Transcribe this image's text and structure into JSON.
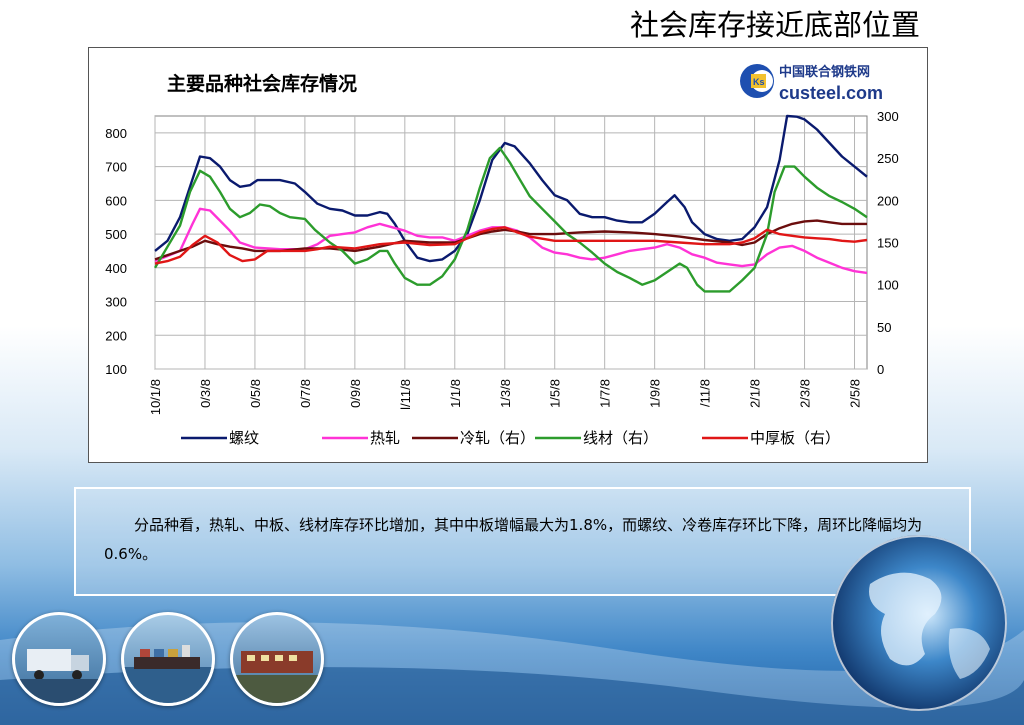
{
  "slide": {
    "title": "社会库存接近底部位置",
    "body_text": "分品种看，热轧、中板、线材库存环比增加，其中中板增幅最大为1.8%，而螺纹、冷卷库存环比下降，周环比降幅均为0.6%。"
  },
  "logo": {
    "cn_text": "中国联合钢铁网",
    "en_text": "custeel.com",
    "mark_text": "Ks"
  },
  "colors": {
    "rebar": "#0a1a6e",
    "hot_rolled": "#ff33d6",
    "cold_rolled": "#6b0d0d",
    "wire_rod": "#2c9c2c",
    "plate": "#e01616",
    "slide_bg_blue": "#1d5fa3"
  },
  "chart_data": {
    "type": "line",
    "title": "主要品种社会库存情况",
    "x_tick_labels": [
      "10/1/8",
      "0/3/8",
      "0/5/8",
      "0/7/8",
      "0/9/8",
      "l/11/8",
      "1/1/8",
      "1/3/8",
      "1/5/8",
      "1/7/8",
      "1/9/8",
      "/11/8",
      "2/1/8",
      "2/3/8",
      "2/5/8"
    ],
    "x_positions": [
      0,
      2,
      4,
      6,
      8,
      10,
      12,
      14,
      16,
      18,
      20,
      22,
      24,
      26,
      28
    ],
    "x_range": [
      0,
      28.5
    ],
    "y_left": {
      "range": [
        100,
        850
      ],
      "ticks": [
        100,
        200,
        300,
        400,
        500,
        600,
        700,
        800
      ]
    },
    "y_right": {
      "range": [
        0,
        300
      ],
      "ticks": [
        0,
        50,
        100,
        150,
        200,
        250,
        300
      ]
    },
    "grid": true,
    "legend_position": "bottom",
    "series": [
      {
        "name": "螺纹",
        "axis": "left",
        "color_key": "rebar",
        "points": [
          [
            0,
            450
          ],
          [
            0.5,
            480
          ],
          [
            1,
            550
          ],
          [
            1.4,
            640
          ],
          [
            1.8,
            730
          ],
          [
            2.2,
            725
          ],
          [
            2.6,
            700
          ],
          [
            3,
            660
          ],
          [
            3.4,
            640
          ],
          [
            3.8,
            645
          ],
          [
            4.1,
            660
          ],
          [
            5,
            660
          ],
          [
            5.6,
            650
          ],
          [
            6,
            625
          ],
          [
            6.5,
            590
          ],
          [
            7,
            575
          ],
          [
            7.5,
            570
          ],
          [
            8,
            555
          ],
          [
            8.5,
            555
          ],
          [
            9,
            565
          ],
          [
            9.3,
            560
          ],
          [
            9.6,
            530
          ],
          [
            10,
            480
          ],
          [
            10.5,
            430
          ],
          [
            11,
            420
          ],
          [
            11.5,
            425
          ],
          [
            12,
            450
          ],
          [
            12.5,
            500
          ],
          [
            13,
            600
          ],
          [
            13.5,
            720
          ],
          [
            14,
            770
          ],
          [
            14.4,
            760
          ],
          [
            15,
            710
          ],
          [
            15.5,
            660
          ],
          [
            16,
            615
          ],
          [
            16.5,
            600
          ],
          [
            17,
            560
          ],
          [
            17.5,
            550
          ],
          [
            18,
            550
          ],
          [
            18.5,
            540
          ],
          [
            19,
            535
          ],
          [
            19.5,
            535
          ],
          [
            20,
            560
          ],
          [
            20.5,
            595
          ],
          [
            20.8,
            615
          ],
          [
            21.2,
            580
          ],
          [
            21.5,
            535
          ],
          [
            22,
            500
          ],
          [
            22.5,
            485
          ],
          [
            23,
            480
          ],
          [
            23.5,
            485
          ],
          [
            24,
            520
          ],
          [
            24.5,
            580
          ],
          [
            25,
            720
          ],
          [
            25.3,
            850
          ],
          [
            25.7,
            848
          ],
          [
            26,
            840
          ],
          [
            26.5,
            810
          ],
          [
            27,
            770
          ],
          [
            27.5,
            730
          ],
          [
            28,
            700
          ],
          [
            28.5,
            670
          ]
        ]
      },
      {
        "name": "热轧",
        "axis": "left",
        "color_key": "hot_rolled",
        "points": [
          [
            0,
            420
          ],
          [
            0.5,
            435
          ],
          [
            1,
            450
          ],
          [
            1.5,
            530
          ],
          [
            1.8,
            575
          ],
          [
            2.2,
            570
          ],
          [
            2.6,
            540
          ],
          [
            3,
            510
          ],
          [
            3.4,
            475
          ],
          [
            4,
            460
          ],
          [
            5,
            455
          ],
          [
            6,
            455
          ],
          [
            6.5,
            470
          ],
          [
            7,
            495
          ],
          [
            7.5,
            500
          ],
          [
            8,
            505
          ],
          [
            8.5,
            520
          ],
          [
            9,
            530
          ],
          [
            9.5,
            520
          ],
          [
            10,
            510
          ],
          [
            10.5,
            495
          ],
          [
            11,
            490
          ],
          [
            11.5,
            490
          ],
          [
            12,
            480
          ],
          [
            12.5,
            495
          ],
          [
            13,
            510
          ],
          [
            13.5,
            520
          ],
          [
            14,
            520
          ],
          [
            14.5,
            510
          ],
          [
            15,
            490
          ],
          [
            15.5,
            460
          ],
          [
            16,
            445
          ],
          [
            16.5,
            440
          ],
          [
            17,
            430
          ],
          [
            17.5,
            425
          ],
          [
            18,
            430
          ],
          [
            18.5,
            440
          ],
          [
            19,
            450
          ],
          [
            19.5,
            455
          ],
          [
            20,
            460
          ],
          [
            20.5,
            470
          ],
          [
            21,
            460
          ],
          [
            21.5,
            440
          ],
          [
            22,
            430
          ],
          [
            22.5,
            415
          ],
          [
            23,
            410
          ],
          [
            23.5,
            405
          ],
          [
            24,
            410
          ],
          [
            24.5,
            440
          ],
          [
            25,
            460
          ],
          [
            25.5,
            465
          ],
          [
            26,
            450
          ],
          [
            26.5,
            430
          ],
          [
            27,
            415
          ],
          [
            27.5,
            400
          ],
          [
            28,
            390
          ],
          [
            28.5,
            385
          ]
        ]
      },
      {
        "name": "冷轧（右）",
        "axis": "right",
        "color_key": "cold_rolled",
        "points": [
          [
            0,
            130
          ],
          [
            0.5,
            135
          ],
          [
            1,
            140
          ],
          [
            1.5,
            145
          ],
          [
            2,
            152
          ],
          [
            2.5,
            148
          ],
          [
            3,
            145
          ],
          [
            3.5,
            143
          ],
          [
            4,
            140
          ],
          [
            5,
            140
          ],
          [
            6,
            143
          ],
          [
            7,
            143
          ],
          [
            8,
            140
          ],
          [
            9,
            145
          ],
          [
            10,
            152
          ],
          [
            11,
            150
          ],
          [
            12,
            150
          ],
          [
            12.5,
            155
          ],
          [
            13,
            160
          ],
          [
            13.5,
            163
          ],
          [
            14,
            165
          ],
          [
            14.5,
            163
          ],
          [
            15,
            160
          ],
          [
            16,
            160
          ],
          [
            17,
            162
          ],
          [
            18,
            163
          ],
          [
            19,
            162
          ],
          [
            20,
            160
          ],
          [
            21,
            157
          ],
          [
            22,
            153
          ],
          [
            23,
            150
          ],
          [
            23.5,
            147
          ],
          [
            24,
            150
          ],
          [
            24.5,
            160
          ],
          [
            25,
            167
          ],
          [
            25.5,
            172
          ],
          [
            26,
            175
          ],
          [
            26.5,
            176
          ],
          [
            27,
            174
          ],
          [
            27.5,
            172
          ],
          [
            28,
            172
          ],
          [
            28.5,
            172
          ]
        ]
      },
      {
        "name": "线材（右）",
        "axis": "right",
        "color_key": "wire_rod",
        "points": [
          [
            0,
            120
          ],
          [
            0.5,
            145
          ],
          [
            1,
            170
          ],
          [
            1.4,
            210
          ],
          [
            1.8,
            235
          ],
          [
            2.2,
            228
          ],
          [
            2.6,
            210
          ],
          [
            3,
            190
          ],
          [
            3.4,
            180
          ],
          [
            3.8,
            185
          ],
          [
            4.2,
            195
          ],
          [
            4.6,
            193
          ],
          [
            5,
            185
          ],
          [
            5.4,
            180
          ],
          [
            6,
            178
          ],
          [
            6.4,
            165
          ],
          [
            7,
            150
          ],
          [
            7.5,
            140
          ],
          [
            8,
            125
          ],
          [
            8.5,
            130
          ],
          [
            9,
            140
          ],
          [
            9.3,
            140
          ],
          [
            9.6,
            125
          ],
          [
            10,
            108
          ],
          [
            10.5,
            100
          ],
          [
            11,
            100
          ],
          [
            11.5,
            110
          ],
          [
            12,
            130
          ],
          [
            12.5,
            165
          ],
          [
            13,
            215
          ],
          [
            13.4,
            250
          ],
          [
            13.8,
            262
          ],
          [
            14.2,
            245
          ],
          [
            14.6,
            225
          ],
          [
            15,
            205
          ],
          [
            15.5,
            190
          ],
          [
            16,
            175
          ],
          [
            16.5,
            160
          ],
          [
            17,
            150
          ],
          [
            17.5,
            138
          ],
          [
            18,
            125
          ],
          [
            18.5,
            115
          ],
          [
            19,
            108
          ],
          [
            19.5,
            100
          ],
          [
            20,
            105
          ],
          [
            20.5,
            115
          ],
          [
            21,
            125
          ],
          [
            21.3,
            120
          ],
          [
            21.7,
            100
          ],
          [
            22,
            92
          ],
          [
            22.5,
            92
          ],
          [
            23,
            92
          ],
          [
            23.5,
            105
          ],
          [
            24,
            120
          ],
          [
            24.5,
            160
          ],
          [
            24.8,
            210
          ],
          [
            25.2,
            240
          ],
          [
            25.6,
            240
          ],
          [
            26,
            228
          ],
          [
            26.5,
            215
          ],
          [
            27,
            205
          ],
          [
            27.5,
            198
          ],
          [
            28,
            190
          ],
          [
            28.5,
            180
          ]
        ]
      },
      {
        "name": "中厚板（右）",
        "axis": "right",
        "color_key": "plate",
        "points": [
          [
            0,
            125
          ],
          [
            0.5,
            128
          ],
          [
            1,
            133
          ],
          [
            1.5,
            147
          ],
          [
            2,
            158
          ],
          [
            2.5,
            150
          ],
          [
            3,
            135
          ],
          [
            3.5,
            128
          ],
          [
            4,
            130
          ],
          [
            4.5,
            140
          ],
          [
            5,
            140
          ],
          [
            6,
            140
          ],
          [
            6.5,
            142
          ],
          [
            7,
            145
          ],
          [
            8,
            143
          ],
          [
            9,
            148
          ],
          [
            10,
            150
          ],
          [
            11,
            147
          ],
          [
            12,
            148
          ],
          [
            12.5,
            155
          ],
          [
            13,
            162
          ],
          [
            13.5,
            166
          ],
          [
            14,
            168
          ],
          [
            14.5,
            162
          ],
          [
            15,
            157
          ],
          [
            16,
            152
          ],
          [
            17,
            152
          ],
          [
            18,
            152
          ],
          [
            19,
            152
          ],
          [
            20,
            152
          ],
          [
            21,
            150
          ],
          [
            22,
            148
          ],
          [
            23,
            148
          ],
          [
            23.5,
            150
          ],
          [
            24,
            155
          ],
          [
            24.5,
            165
          ],
          [
            25,
            160
          ],
          [
            25.5,
            158
          ],
          [
            26,
            156
          ],
          [
            26.5,
            155
          ],
          [
            27,
            154
          ],
          [
            27.5,
            152
          ],
          [
            28,
            151
          ],
          [
            28.5,
            153
          ]
        ]
      }
    ]
  }
}
